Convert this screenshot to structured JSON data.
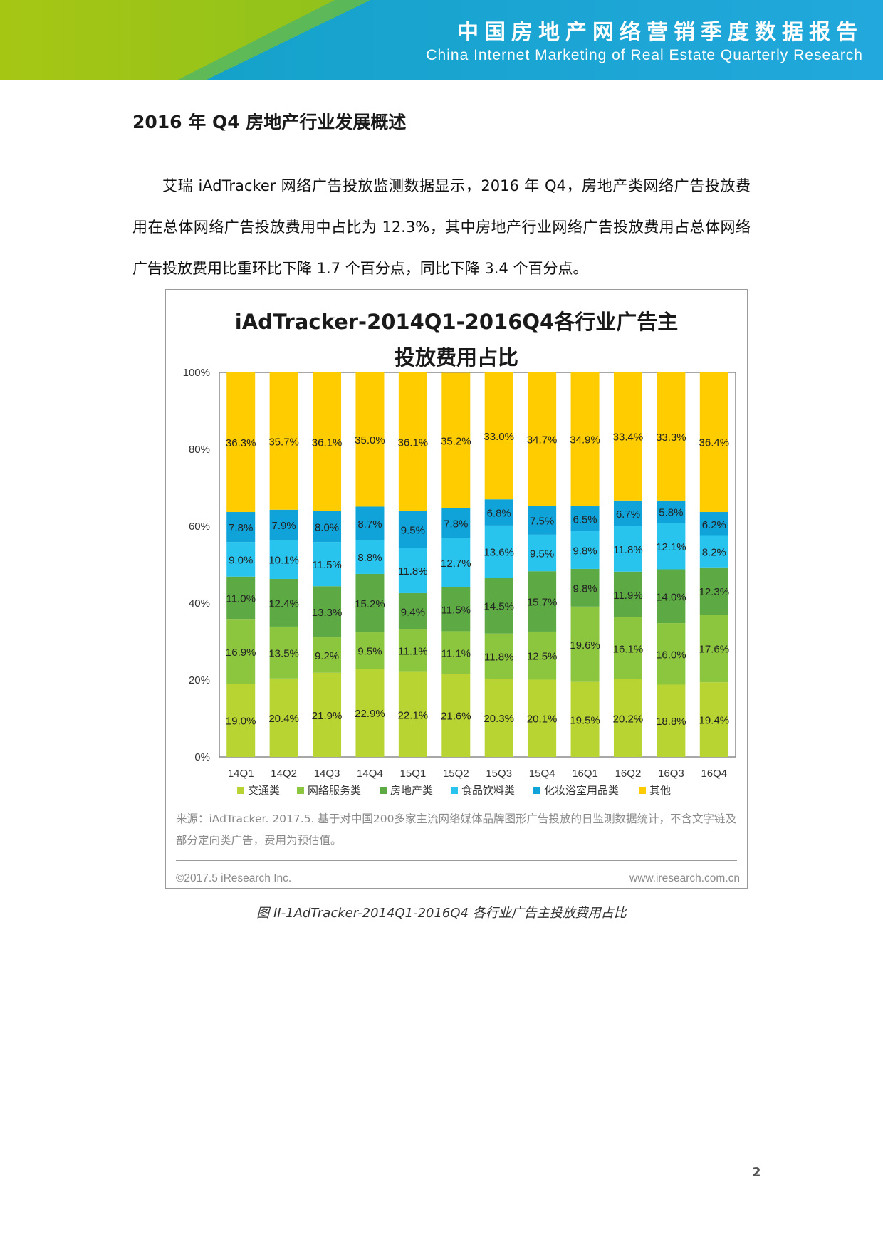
{
  "header": {
    "title": "中国房地产网络营销季度数据报告",
    "subtitle": "China Internet Marketing of Real Estate Quarterly Research",
    "colors": {
      "green": "#a6c614",
      "blue": "#1aa3d8"
    }
  },
  "section": {
    "title": "2016 年 Q4 房地产行业发展概述",
    "paragraph": "艾瑞 iAdTracker 网络广告投放监测数据显示，2016 年 Q4，房地产类网络广告投放费用在总体网络广告投放费用中占比为 12.3%，其中房地产行业网络广告投放费用占总体网络广告投放费用比重环比下降 1.7 个百分点，同比下降 3.4 个百分点。"
  },
  "figure": {
    "source": "来源：iAdTracker. 2017.5. 基于对中国200多家主流网络媒体品牌图形广告投放的日监测数据统计，不含文字链及部分定向类广告，费用为预估值。",
    "copyright": "©2017.5 iResearch Inc.",
    "website": "www.iresearch.com.cn",
    "caption": "图 II-1AdTracker-2014Q1-2016Q4 各行业广告主投放费用占比"
  },
  "chart_data": {
    "type": "bar",
    "stacked": true,
    "percent": true,
    "title_line1": "iAdTracker-2014Q1-2016Q4各行业广告主",
    "title_line2": "投放费用占比",
    "categories": [
      "14Q1",
      "14Q2",
      "14Q3",
      "14Q4",
      "15Q1",
      "15Q2",
      "15Q3",
      "15Q4",
      "16Q1",
      "16Q2",
      "16Q3",
      "16Q4"
    ],
    "ylim": [
      0,
      100
    ],
    "yticks": [
      "0%",
      "20%",
      "40%",
      "60%",
      "80%",
      "100%"
    ],
    "legend_position": "bottom",
    "grid": false,
    "series": [
      {
        "name": "交通类",
        "color": "#b8d433",
        "values": [
          19.0,
          20.4,
          21.9,
          22.9,
          22.1,
          21.6,
          20.3,
          20.1,
          19.5,
          20.2,
          18.8,
          19.4
        ],
        "labels": [
          "19.0%",
          "20.4%",
          "21.9%",
          "22.9%",
          "22.1%",
          "21.6%",
          "20.3%",
          "20.1%",
          "19.5%",
          "20.2%",
          "18.8%",
          "19.4%"
        ]
      },
      {
        "name": "网络服务类",
        "color": "#8cc63f",
        "values": [
          16.9,
          13.5,
          9.2,
          9.5,
          11.1,
          11.1,
          11.8,
          12.5,
          19.6,
          16.1,
          16.0,
          17.6
        ],
        "labels": [
          "16.9%",
          "13.5%",
          "9.2%",
          "9.5%",
          "11.1%",
          "11.1%",
          "11.8%",
          "12.5%",
          "19.6%",
          "16.1%",
          "16.0%",
          "17.6%"
        ]
      },
      {
        "name": "房地产类",
        "color": "#5daa45",
        "values": [
          11.0,
          12.4,
          13.3,
          15.2,
          9.4,
          11.5,
          14.5,
          15.7,
          9.8,
          11.9,
          14.0,
          12.3
        ],
        "labels": [
          "11.0%",
          "12.4%",
          "13.3%",
          "15.2%",
          "9.4%",
          "11.5%",
          "14.5%",
          "15.7%",
          "9.8%",
          "11.9%",
          "14.0%",
          "12.3%"
        ]
      },
      {
        "name": "食品饮料类",
        "color": "#29c4ee",
        "values": [
          9.0,
          10.1,
          11.5,
          8.8,
          11.8,
          12.7,
          13.6,
          9.5,
          9.8,
          11.8,
          12.1,
          8.2
        ],
        "labels": [
          "9.0%",
          "10.1%",
          "11.5%",
          "8.8%",
          "11.8%",
          "12.7%",
          "13.6%",
          "9.5%",
          "9.8%",
          "11.8%",
          "12.1%",
          "8.2%"
        ]
      },
      {
        "name": "化妆浴室用品类",
        "color": "#0fa3da",
        "values": [
          7.8,
          7.9,
          8.0,
          8.7,
          9.5,
          7.8,
          6.8,
          7.5,
          6.5,
          6.7,
          5.8,
          6.2
        ],
        "labels": [
          "7.8%",
          "7.9%",
          "8.0%",
          "8.7%",
          "9.5%",
          "7.8%",
          "6.8%",
          "7.5%",
          "6.5%",
          "6.7%",
          "5.8%",
          "6.2%"
        ]
      },
      {
        "name": "其他",
        "color": "#ffcc00",
        "values": [
          36.3,
          35.7,
          36.1,
          35.0,
          36.1,
          35.2,
          33.0,
          34.7,
          34.9,
          33.4,
          33.3,
          36.4
        ],
        "labels": [
          "36.3%",
          "35.7%",
          "36.1%",
          "35.0%",
          "36.1%",
          "35.2%",
          "33.0%",
          "34.7%",
          "34.9%",
          "33.4%",
          "33.3%",
          "36.4%"
        ]
      }
    ]
  },
  "page_number": "2"
}
